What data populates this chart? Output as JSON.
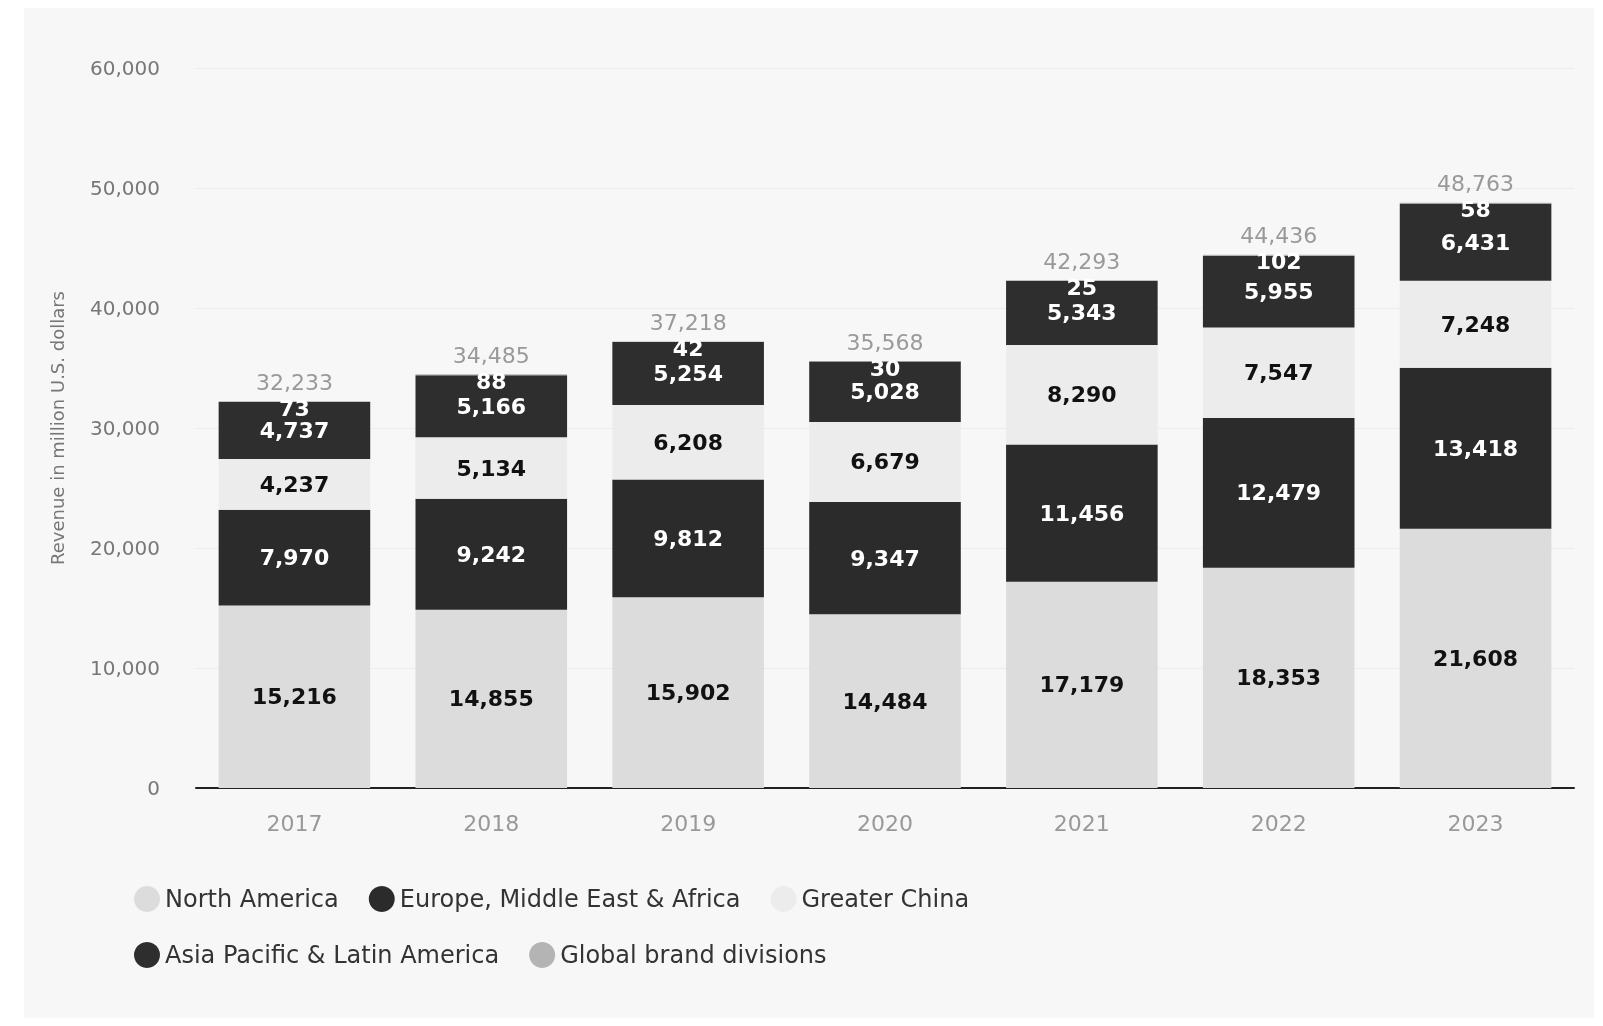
{
  "chart_data": {
    "type": "bar",
    "stacked": true,
    "ylabel": "Revenue in million U.S. dollars",
    "categories": [
      "2017",
      "2018",
      "2019",
      "2020",
      "2021",
      "2022",
      "2023"
    ],
    "series": [
      {
        "name": "North America",
        "color": "#dcdcdc",
        "values": [
          15216,
          14855,
          15902,
          14484,
          17179,
          18353,
          21608
        ],
        "value_labels": [
          "15,216",
          "14,855",
          "15,902",
          "14,484",
          "17,179",
          "18,353",
          "21,608"
        ]
      },
      {
        "name": "Europe, Middle East & Africa",
        "color": "#2b2b2b",
        "values": [
          7970,
          9242,
          9812,
          9347,
          11456,
          12479,
          13418
        ],
        "value_labels": [
          "7,970",
          "9,242",
          "9,812",
          "9,347",
          "11,456",
          "12,479",
          "13,418"
        ]
      },
      {
        "name": "Greater China",
        "color": "#ececec",
        "values": [
          4237,
          5134,
          6208,
          6679,
          8290,
          7547,
          7248
        ],
        "value_labels": [
          "4,237",
          "5,134",
          "6,208",
          "6,679",
          "8,290",
          "7,547",
          "7,248"
        ]
      },
      {
        "name": "Asia Pacific & Latin America",
        "color": "#2e2e2e",
        "values": [
          4737,
          5166,
          5254,
          5028,
          5343,
          5955,
          6431
        ],
        "value_labels": [
          "4,737",
          "5,166",
          "5,254",
          "5,028",
          "5,343",
          "5,955",
          "6,431"
        ]
      },
      {
        "name": "Global brand divisions",
        "color": "#b4b4b4",
        "values": [
          73,
          88,
          42,
          30,
          25,
          102,
          58
        ],
        "value_labels": [
          "73",
          "88",
          "42",
          "30",
          "25",
          "102",
          "58"
        ]
      }
    ],
    "totals": [
      "32,233",
      "34,485",
      "37,218",
      "35,568",
      "42,293",
      "44,436",
      "48,763"
    ],
    "ylim": [
      0,
      60000
    ],
    "yticks": [
      0,
      {
        "value": 10000,
        "label": "10,000"
      },
      {
        "value": 20000,
        "label": "20,000"
      },
      {
        "value": 30000,
        "label": "30,000"
      },
      {
        "value": 40000,
        "label": "40,000"
      },
      {
        "value": 50000,
        "label": "50,000"
      },
      {
        "value": 60000,
        "label": "60,000"
      }
    ],
    "grid": "y",
    "legend": "bottom"
  }
}
